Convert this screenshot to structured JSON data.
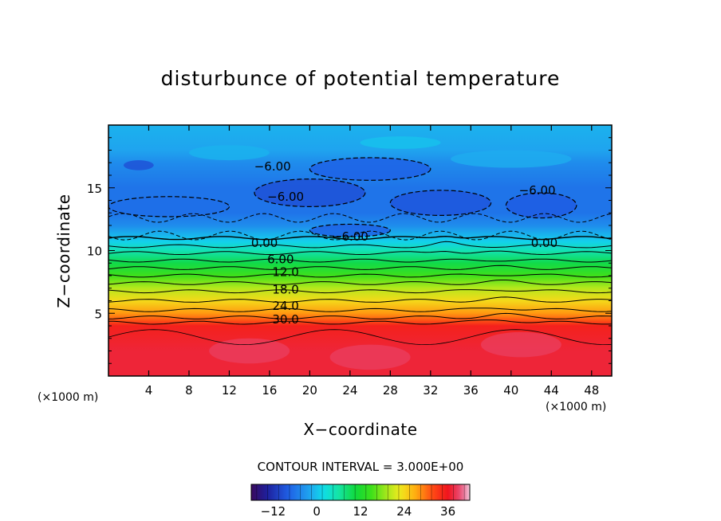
{
  "chart_data": {
    "type": "heatmap",
    "title": "disturbunce of potential temperature",
    "xlabel": "X−coordinate",
    "ylabel": "Z−coordinate",
    "x_unit": "(×1000 m)",
    "xlim": [
      0,
      50
    ],
    "ylim": [
      0,
      20
    ],
    "x_ticks": [
      4,
      8,
      12,
      16,
      20,
      24,
      28,
      32,
      36,
      40,
      44,
      48
    ],
    "y_ticks": [
      5,
      10,
      15
    ],
    "contour_interval_text": "CONTOUR INTERVAL = 3.000E+00",
    "contour_interval": 3.0,
    "colorbar": {
      "min": -18,
      "max": 42,
      "ticks": [
        -12,
        0,
        12,
        24,
        36
      ]
    },
    "field_profile": {
      "z": [
        0,
        2,
        4,
        4.5,
        5,
        6,
        7,
        8,
        9,
        10,
        10.7,
        11,
        12,
        13,
        14,
        15,
        16,
        17,
        18,
        20
      ],
      "value": [
        37,
        37,
        35,
        31,
        28,
        24,
        20,
        15,
        10,
        5,
        1,
        0,
        -4,
        -6,
        -6,
        -6,
        -5,
        -4,
        -2,
        -1
      ]
    },
    "contour_labels": [
      {
        "text": "−6.00",
        "x": 16.3,
        "z": 16.7
      },
      {
        "text": "−6.00",
        "x": 17.6,
        "z": 14.3
      },
      {
        "text": "−6.00",
        "x": 24.0,
        "z": 11.1
      },
      {
        "text": "−6.00",
        "x": 42.6,
        "z": 14.8
      },
      {
        "text": "0.00",
        "x": 15.5,
        "z": 10.6
      },
      {
        "text": "0.00",
        "x": 43.3,
        "z": 10.6
      },
      {
        "text": "6.00",
        "x": 17.1,
        "z": 9.3
      },
      {
        "text": "12.0",
        "x": 17.6,
        "z": 8.3
      },
      {
        "text": "18.0",
        "x": 17.6,
        "z": 6.9
      },
      {
        "text": "24.0",
        "x": 17.6,
        "z": 5.6
      },
      {
        "text": "30.0",
        "x": 17.6,
        "z": 4.5
      }
    ]
  }
}
